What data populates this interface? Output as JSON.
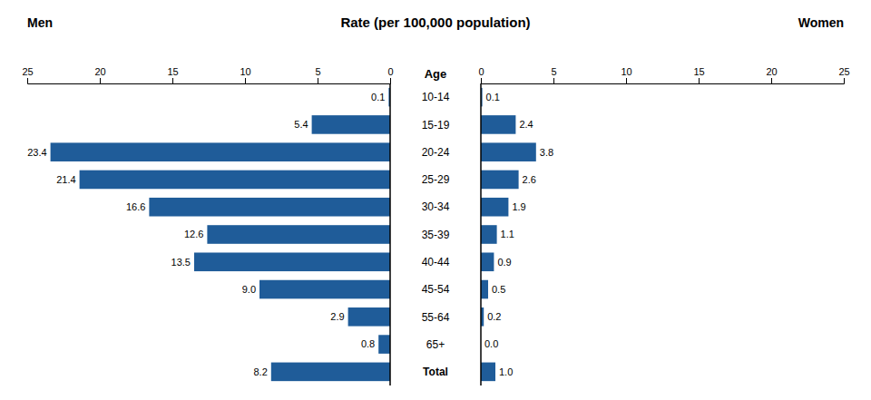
{
  "chart_data": {
    "type": "bar",
    "orientation": "horizontal",
    "title": "Rate (per 100,000 population)",
    "y_label": "Age",
    "categories": [
      "10-14",
      "15-19",
      "20-24",
      "25-29",
      "30-34",
      "35-39",
      "40-44",
      "45-54",
      "55-64",
      "65+",
      "Total"
    ],
    "series": [
      {
        "name": "Men",
        "color": "#1F5C99",
        "values": [
          0.1,
          5.4,
          23.4,
          21.4,
          16.6,
          12.6,
          13.5,
          9.0,
          2.9,
          0.8,
          8.2
        ],
        "value_labels": [
          "0.1",
          "5.4",
          "23.4",
          "21.4",
          "16.6",
          "12.6",
          "13.5",
          "9.0",
          "2.9",
          "0.8",
          "8.2"
        ]
      },
      {
        "name": "Women",
        "color": "#1F5C99",
        "values": [
          0.1,
          2.4,
          3.8,
          2.6,
          1.9,
          1.1,
          0.9,
          0.5,
          0.2,
          0.0,
          1.0
        ],
        "value_labels": [
          "0.1",
          "2.4",
          "3.8",
          "2.6",
          "1.9",
          "1.1",
          "0.9",
          "0.5",
          "0.2",
          "0.0",
          "1.0"
        ]
      }
    ],
    "xlim": [
      0,
      25
    ],
    "xticks": [
      0,
      5,
      10,
      15,
      20,
      25
    ],
    "data_labels": true
  }
}
